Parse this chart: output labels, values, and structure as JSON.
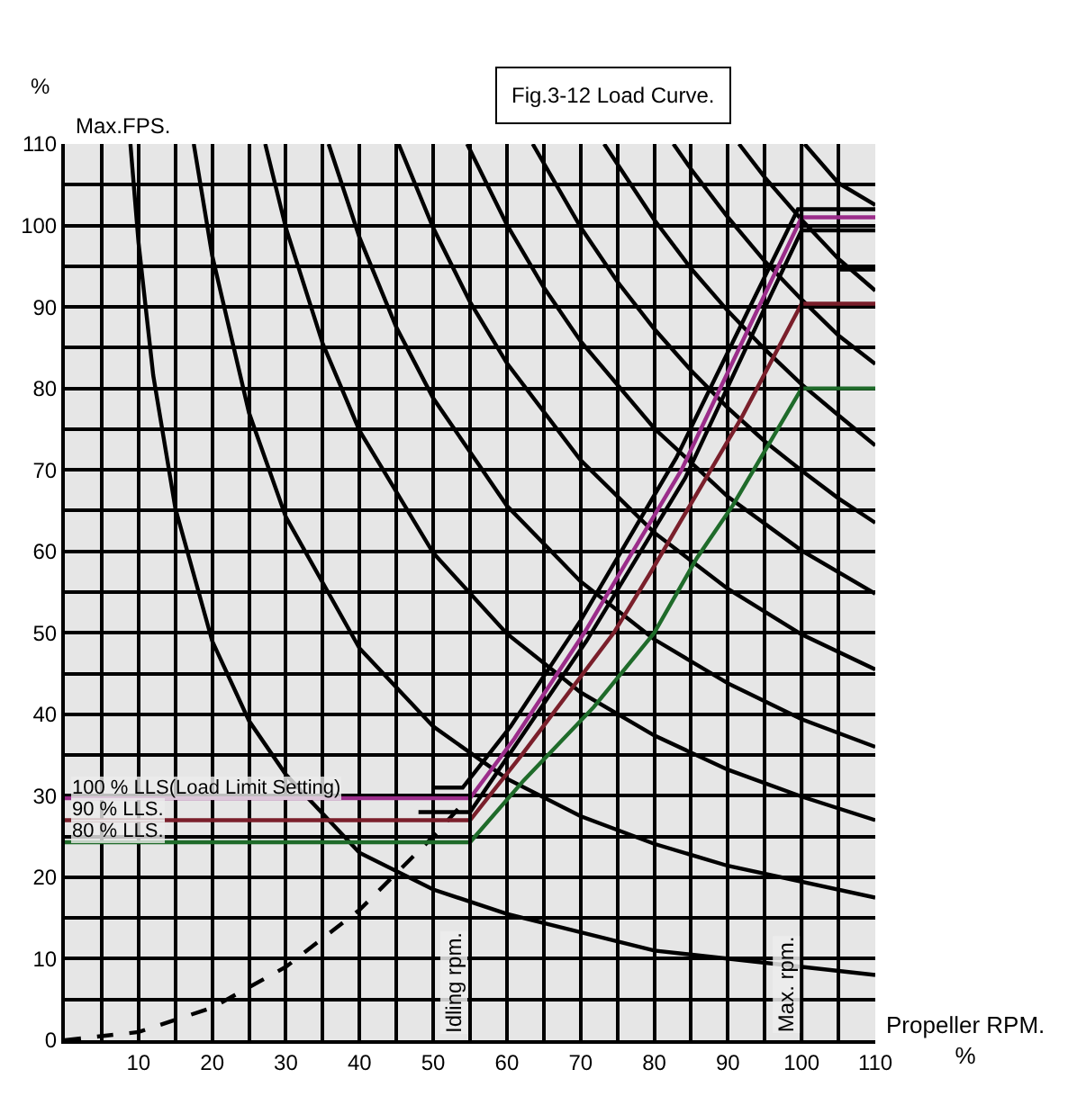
{
  "chart_data": {
    "type": "line",
    "title": "Fig.3-12 Load Curve.",
    "xlabel": "Propeller RPM.\n%",
    "ylabel": "%",
    "xlim": [
      0,
      110
    ],
    "ylim": [
      0,
      110
    ],
    "xticks": [
      {
        "value": 5,
        "label": null
      },
      10,
      {
        "value": 15,
        "label": null
      },
      20,
      {
        "value": 25,
        "label": null
      },
      30,
      {
        "value": 35,
        "label": null
      },
      40,
      {
        "value": 45,
        "label": null
      },
      50,
      {
        "value": 55,
        "label": null
      },
      60,
      {
        "value": 65,
        "label": null
      },
      70,
      {
        "value": 75,
        "label": null
      },
      80,
      {
        "value": 85,
        "label": null
      },
      90,
      {
        "value": 95,
        "label": null
      },
      100,
      {
        "value": 105,
        "label": null
      },
      110
    ],
    "yticks": [
      0,
      {
        "value": 5,
        "label": null
      },
      10,
      {
        "value": 15,
        "label": null
      },
      20,
      {
        "value": 25,
        "label": null
      },
      30,
      {
        "value": 35,
        "label": null
      },
      40,
      {
        "value": 45,
        "label": null
      },
      50,
      {
        "value": 55,
        "label": null
      },
      60,
      {
        "value": 65,
        "label": null
      },
      70,
      {
        "value": 75,
        "label": null
      },
      80,
      {
        "value": 85,
        "label": null
      },
      90,
      {
        "value": 95,
        "label": null
      },
      100,
      {
        "value": 105,
        "label": null
      },
      110
    ],
    "grid": true,
    "marker": "none",
    "line_style": "solid",
    "series": [
      {
        "color": "#000000",
        "x": [
          8.9,
          10,
          12,
          15,
          20,
          25,
          30,
          40,
          50,
          60,
          80,
          110
        ],
        "values": [
          110,
          97.9,
          81.6,
          65.3,
          49,
          39.2,
          32.6,
          23,
          18.5,
          15.5,
          11,
          8
        ]
      },
      {
        "color": "#000000",
        "x": [
          17.5,
          20,
          25,
          30,
          40,
          50,
          60,
          70,
          80,
          90,
          110
        ],
        "values": [
          110,
          96.3,
          77,
          64.2,
          48.1,
          38.5,
          32.1,
          27.5,
          24.1,
          21.4,
          17.5
        ]
      },
      {
        "color": "#000000",
        "x": [
          27.2,
          30,
          35,
          40,
          50,
          60,
          70,
          80,
          90,
          100,
          110
        ],
        "values": [
          110,
          99.7,
          85.5,
          74.8,
          59.8,
          49.9,
          42.7,
          37.4,
          33.2,
          29.9,
          27
        ]
      },
      {
        "color": "#000000",
        "x": [
          35.8,
          40,
          45,
          50,
          60,
          70,
          80,
          90,
          100,
          110
        ],
        "values": [
          110,
          98.5,
          87.5,
          78.8,
          65.6,
          56.3,
          49.2,
          43.8,
          39.4,
          36
        ]
      },
      {
        "color": "#000000",
        "x": [
          45.3,
          50,
          55,
          60,
          70,
          80,
          90,
          100,
          110
        ],
        "values": [
          110,
          99.7,
          90.6,
          83.1,
          71.2,
          62.3,
          55.4,
          49.8,
          45.5
        ]
      },
      {
        "color": "#000000",
        "x": [
          54.6,
          60,
          65,
          70,
          80,
          90,
          100,
          110
        ],
        "values": [
          110,
          100.1,
          92.4,
          85.8,
          75.1,
          66.7,
          60.1,
          54.8
        ]
      },
      {
        "color": "#000000",
        "x": [
          63.5,
          70,
          75,
          80,
          85,
          90,
          95,
          100,
          105,
          110
        ],
        "values": [
          110,
          99.8,
          93.1,
          87.3,
          82.2,
          77.6,
          73.5,
          69.9,
          66.5,
          63.5
        ]
      },
      {
        "color": "#000000",
        "x": [
          73.2,
          80,
          85,
          90,
          95,
          100,
          105,
          110
        ],
        "values": [
          110,
          100.7,
          94.7,
          89.5,
          84.8,
          80.5,
          76.7,
          73
        ]
      },
      {
        "color": "#000000",
        "x": [
          82.6,
          85,
          90,
          95,
          100,
          105,
          110
        ],
        "values": [
          110,
          106.9,
          101,
          95.6,
          90.9,
          86.5,
          83
        ]
      },
      {
        "color": "#000000",
        "x": [
          91.5,
          95,
          100,
          105,
          110
        ],
        "values": [
          110,
          105.9,
          100.7,
          95.9,
          92
        ]
      },
      {
        "color": "#000000",
        "x": [
          100.4,
          105,
          110
        ],
        "values": [
          110,
          105.2,
          102.5
        ]
      },
      {
        "color": "#000000",
        "line_style": "dashed",
        "x": [
          0,
          10,
          20,
          30,
          40,
          50,
          55
        ],
        "values": [
          0,
          1,
          4,
          9,
          16,
          25,
          30
        ]
      },
      {
        "color": "#000000",
        "x": [
          50,
          54,
          60.5,
          70,
          83,
          93.8,
          99.5,
          110
        ],
        "values": [
          31,
          31,
          38.5,
          51.5,
          71.5,
          91.5,
          102,
          102
        ]
      },
      {
        "name": "100 % LLS(Load Limit Setting)",
        "color": "#9b2d8a",
        "x": [
          0,
          55,
          61,
          70.5,
          83.7,
          94.3,
          100,
          110
        ],
        "values": [
          29.7,
          29.7,
          37,
          50,
          70,
          90.2,
          101,
          101
        ]
      },
      {
        "color": "#000000",
        "x": [
          48,
          55,
          70.8,
          84.2,
          94.8,
          100,
          110
        ],
        "values": [
          28,
          28,
          49,
          69,
          89.5,
          99.4,
          99.4
        ]
      },
      {
        "name": "90 % LLS.",
        "color": "#7a1f2b",
        "x": [
          0,
          55,
          62,
          74.5,
          79.3,
          91.9,
          100,
          110
        ],
        "values": [
          27,
          27,
          35,
          50,
          57.1,
          76.5,
          90.4,
          90.4
        ]
      },
      {
        "color": "#000000",
        "x": [
          105,
          110
        ],
        "values": [
          94.6,
          94.6
        ]
      },
      {
        "name": "80 % LLS.",
        "color": "#1f6b2a",
        "x": [
          0,
          55,
          62.3,
          71.8,
          80,
          85.8,
          90.7,
          100,
          110
        ],
        "values": [
          24.3,
          24.3,
          31.9,
          40.9,
          50,
          59.2,
          65.7,
          80,
          80
        ]
      }
    ],
    "ref_lines": [
      {
        "axis": "x",
        "value": 55,
        "label": "Idling rpm.",
        "color": "#000000"
      },
      {
        "axis": "x",
        "value": 100,
        "label": "Max. rpm.",
        "color": "#000000"
      }
    ],
    "annotations": [
      "Max.FPS."
    ]
  }
}
